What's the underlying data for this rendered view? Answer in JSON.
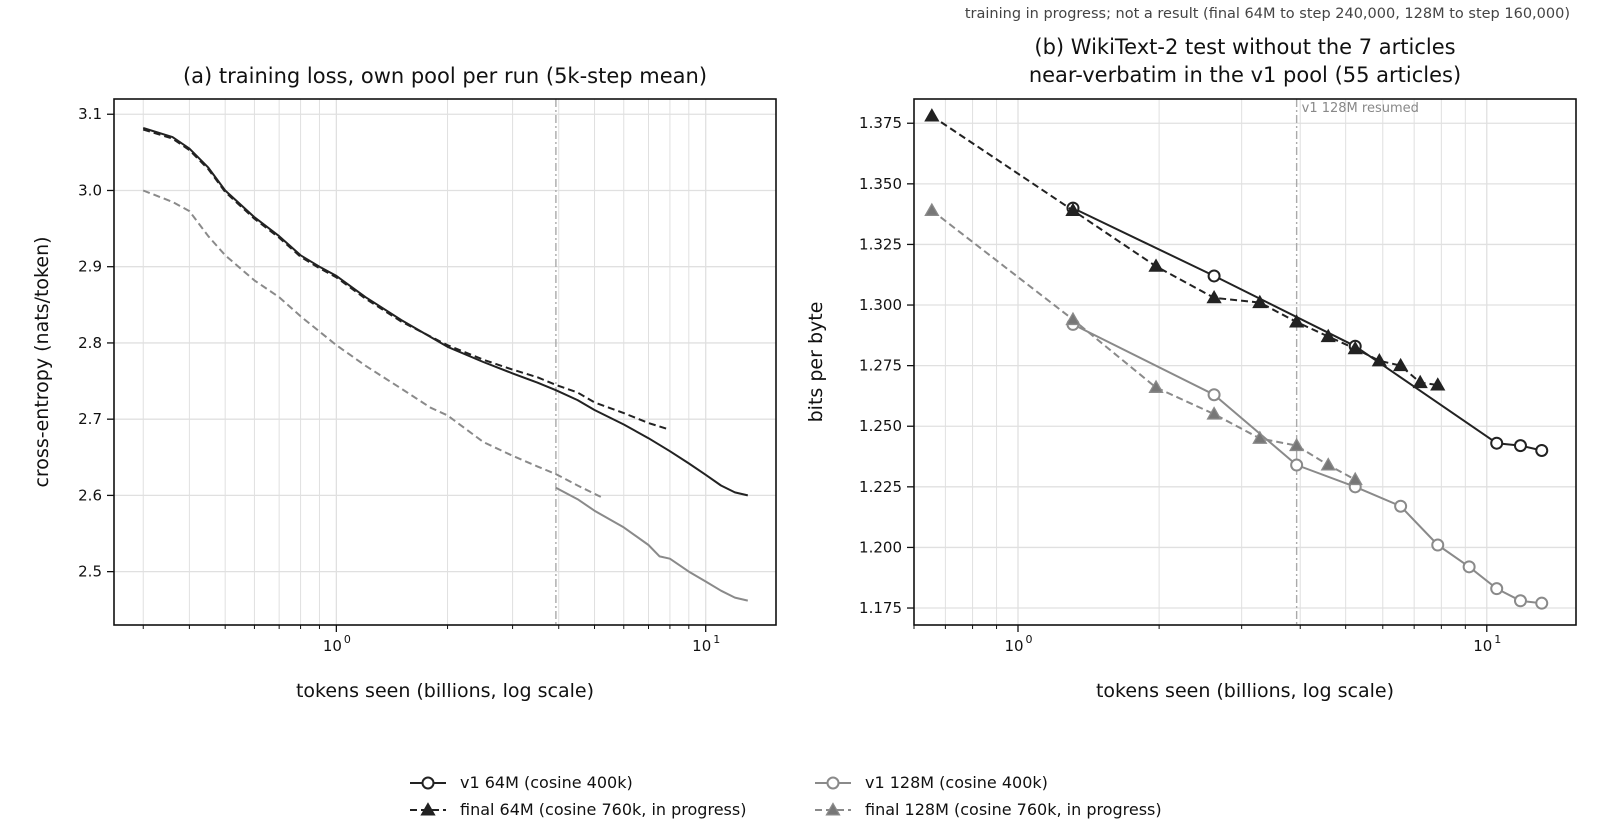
{
  "suptitle": "training in progress; not a result (final 64M to step 240,000, 128M to step 160,000)",
  "legend": {
    "placement": "bottom-center",
    "entries": [
      {
        "label": "v1 64M (cosine 400k)",
        "color": "#222222",
        "dash": "solid",
        "marker": "circle",
        "fill": "#ffffff"
      },
      {
        "label": "v1 128M (cosine 400k)",
        "color": "#8a8a8a",
        "dash": "solid",
        "marker": "circle",
        "fill": "#ffffff"
      },
      {
        "label": "final 64M (cosine 760k, in progress)",
        "color": "#222222",
        "dash": "dashed",
        "marker": "triangle",
        "fill": "#222222"
      },
      {
        "label": "final 128M (cosine 760k, in progress)",
        "color": "#8a8a8a",
        "dash": "dashed",
        "marker": "triangle",
        "fill": "#777777"
      }
    ]
  },
  "chart_data": [
    {
      "type": "line",
      "title": "(a) training loss, own pool per run (5k-step mean)",
      "xlabel": "tokens seen (billions, log scale)",
      "ylabel": "cross-entropy (nats/token)",
      "xscale": "log",
      "xlim": [
        0.25,
        15.5
      ],
      "ylim": [
        2.43,
        3.12
      ],
      "yticks": [
        "2.5",
        "2.6",
        "2.7",
        "2.8",
        "2.9",
        "3.0",
        "3.1"
      ],
      "xticks": [
        {
          "base": "10",
          "exp": "0",
          "value": 1
        },
        {
          "base": "10",
          "exp": "1",
          "value": 10
        }
      ],
      "grid": true,
      "vline": 3.93,
      "series": [
        {
          "ref": 0,
          "color": "#222222",
          "dash": "solid",
          "marker": "none",
          "x": [
            0.3,
            0.36,
            0.4,
            0.45,
            0.5,
            0.6,
            0.7,
            0.8,
            0.9,
            1.0,
            1.2,
            1.5,
            2.0,
            2.5,
            3.0,
            3.5,
            3.93,
            4.5,
            5.0,
            6.0,
            7.0,
            8.0,
            9.0,
            10.0,
            11.0,
            12.0,
            13.0
          ],
          "y": [
            3.082,
            3.07,
            3.055,
            3.03,
            3.0,
            2.965,
            2.94,
            2.915,
            2.9,
            2.888,
            2.86,
            2.83,
            2.795,
            2.775,
            2.76,
            2.748,
            2.738,
            2.725,
            2.712,
            2.693,
            2.675,
            2.658,
            2.642,
            2.627,
            2.613,
            2.604,
            2.6
          ]
        },
        {
          "ref": 2,
          "color": "#222222",
          "dash": "dashed",
          "marker": "none",
          "x": [
            0.3,
            0.36,
            0.4,
            0.45,
            0.5,
            0.6,
            0.7,
            0.8,
            0.9,
            1.0,
            1.2,
            1.5,
            2.0,
            2.5,
            3.0,
            3.5,
            3.93,
            4.5,
            5.0,
            6.0,
            7.0,
            8.0
          ],
          "y": [
            3.08,
            3.068,
            3.053,
            3.028,
            2.998,
            2.963,
            2.938,
            2.913,
            2.898,
            2.886,
            2.858,
            2.828,
            2.797,
            2.778,
            2.765,
            2.755,
            2.745,
            2.735,
            2.722,
            2.708,
            2.695,
            2.686
          ]
        },
        {
          "ref": 1,
          "color": "#8a8a8a",
          "dash": "solid",
          "marker": "none",
          "x": [
            3.93,
            4.5,
            5.0,
            6.0,
            7.0,
            7.5,
            8.0,
            9.0,
            10.0,
            11.0,
            12.0,
            13.0
          ],
          "y": [
            2.61,
            2.595,
            2.58,
            2.558,
            2.535,
            2.52,
            2.517,
            2.5,
            2.487,
            2.475,
            2.466,
            2.462
          ]
        },
        {
          "ref": 3,
          "color": "#8a8a8a",
          "dash": "dashed",
          "marker": "none",
          "x": [
            0.3,
            0.36,
            0.4,
            0.45,
            0.5,
            0.6,
            0.7,
            0.8,
            1.0,
            1.2,
            1.5,
            1.8,
            2.0,
            2.5,
            3.0,
            3.5,
            3.93,
            4.5,
            5.2
          ],
          "y": [
            3.0,
            2.985,
            2.973,
            2.94,
            2.915,
            2.882,
            2.86,
            2.835,
            2.797,
            2.77,
            2.74,
            2.715,
            2.705,
            2.67,
            2.652,
            2.638,
            2.628,
            2.613,
            2.598
          ]
        }
      ]
    },
    {
      "type": "line",
      "title": "(b) WikiText-2 test without the 7 articles near-verbatim in the v1 pool (55 articles)",
      "title_lines": [
        "(b) WikiText-2 test without the 7 articles",
        "near-verbatim in the v1 pool (55 articles)"
      ],
      "xlabel": "tokens seen (billions, log scale)",
      "ylabel": "bits per byte",
      "xscale": "log",
      "xlim": [
        0.6,
        15.5
      ],
      "ylim": [
        1.168,
        1.385
      ],
      "yticks": [
        "1.175",
        "1.200",
        "1.225",
        "1.250",
        "1.275",
        "1.300",
        "1.325",
        "1.350",
        "1.375"
      ],
      "xticks": [
        {
          "base": "10",
          "exp": "0",
          "value": 1
        },
        {
          "base": "10",
          "exp": "1",
          "value": 10
        }
      ],
      "grid": true,
      "vline": 3.93,
      "vline_label": "v1 128M resumed",
      "series": [
        {
          "ref": 0,
          "color": "#222222",
          "dash": "solid",
          "marker": "circle",
          "fill": "#ffffff",
          "x": [
            1.31,
            2.62,
            5.24,
            10.5,
            11.8,
            13.1
          ],
          "y": [
            1.34,
            1.312,
            1.283,
            1.243,
            1.242,
            1.24
          ]
        },
        {
          "ref": 2,
          "color": "#222222",
          "dash": "dashed",
          "marker": "triangle",
          "fill": "#222222",
          "x": [
            0.655,
            1.31,
            1.97,
            2.62,
            3.28,
            3.93,
            4.59,
            5.24,
            5.9,
            6.55,
            7.21,
            7.86
          ],
          "y": [
            1.378,
            1.339,
            1.316,
            1.303,
            1.301,
            1.293,
            1.287,
            1.282,
            1.277,
            1.275,
            1.268,
            1.267
          ]
        },
        {
          "ref": 1,
          "color": "#8a8a8a",
          "dash": "solid",
          "marker": "circle",
          "fill": "#ffffff",
          "x": [
            1.31,
            2.62,
            3.93,
            5.24,
            6.55,
            7.86,
            9.17,
            10.5,
            11.8,
            13.1
          ],
          "y": [
            1.292,
            1.263,
            1.234,
            1.225,
            1.217,
            1.201,
            1.192,
            1.183,
            1.178,
            1.177
          ]
        },
        {
          "ref": 3,
          "color": "#8a8a8a",
          "dash": "dashed",
          "marker": "triangle",
          "fill": "#777777",
          "x": [
            0.655,
            1.31,
            1.97,
            2.62,
            3.28,
            3.93,
            4.59,
            5.24
          ],
          "y": [
            1.339,
            1.294,
            1.266,
            1.255,
            1.245,
            1.242,
            1.234,
            1.228
          ]
        }
      ]
    }
  ]
}
